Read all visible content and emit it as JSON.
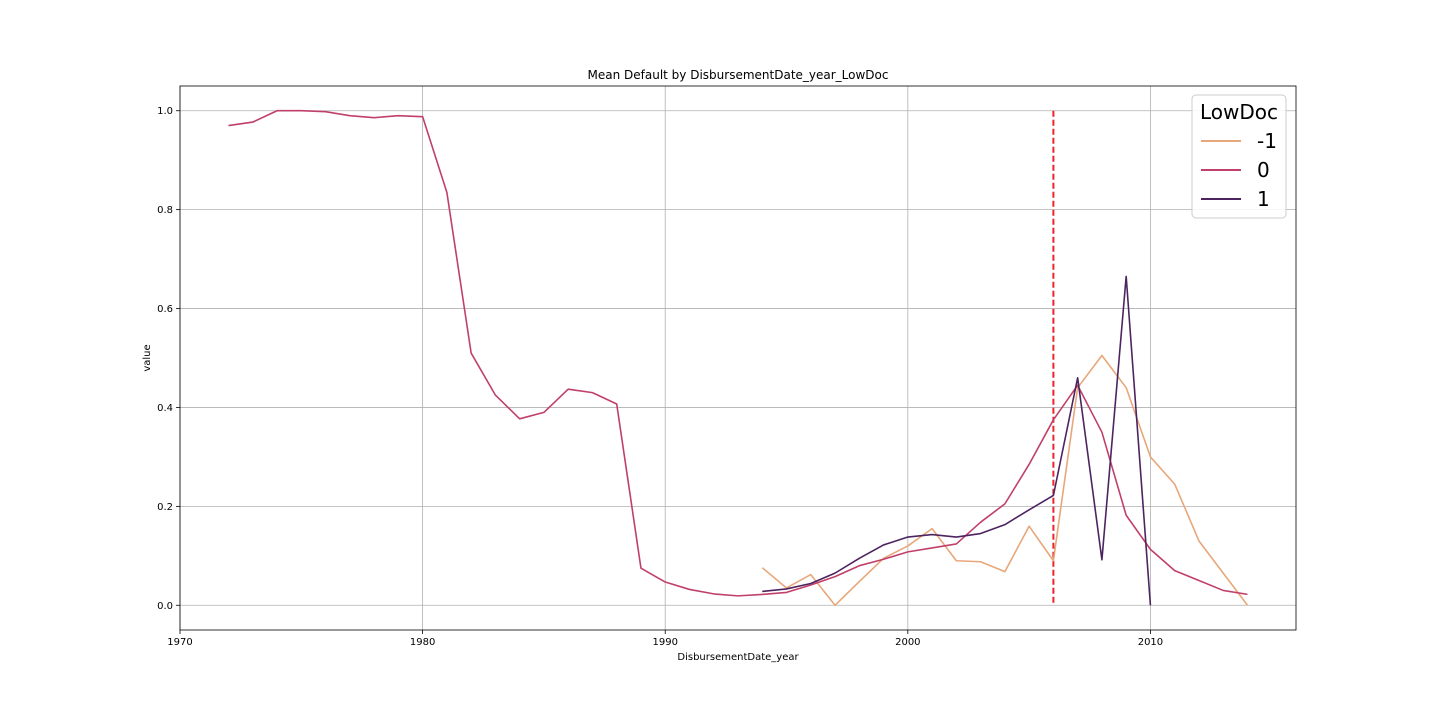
{
  "chart_data": {
    "type": "line",
    "title": "Mean Default by DisbursementDate_year_LowDoc",
    "xlabel": "DisbursementDate_year",
    "ylabel": "value",
    "xlim": [
      1970,
      2016
    ],
    "ylim": [
      -0.05,
      1.05
    ],
    "xticks": [
      1970,
      1980,
      1990,
      2000,
      2010
    ],
    "xtick_labels": [
      "1970",
      "1980",
      "1990",
      "2000",
      "2010"
    ],
    "yticks": [
      0.0,
      0.2,
      0.4,
      0.6,
      0.8,
      1.0
    ],
    "ytick_labels": [
      "0.0",
      "0.2",
      "0.4",
      "0.6",
      "0.8",
      "1.0"
    ],
    "grid": true,
    "legend": {
      "title": "LowDoc",
      "placement": "top-right"
    },
    "series": [
      {
        "name": "-1",
        "color": "#e8a77a",
        "x": [
          1994,
          1995,
          1996,
          1997,
          1998,
          1999,
          2000,
          2001,
          2002,
          2003,
          2004,
          2005,
          2006,
          2007,
          2008,
          2009,
          2010,
          2011,
          2012,
          2013,
          2014
        ],
        "y": [
          0.076,
          0.035,
          0.062,
          0.0,
          0.048,
          0.095,
          0.12,
          0.155,
          0.09,
          0.088,
          0.068,
          0.16,
          0.09,
          0.44,
          0.505,
          0.44,
          0.3,
          0.245,
          0.13,
          0.065,
          0.0
        ]
      },
      {
        "name": "0",
        "color": "#c0406a",
        "x": [
          1972,
          1973,
          1974,
          1975,
          1976,
          1977,
          1978,
          1979,
          1980,
          1981,
          1982,
          1983,
          1984,
          1985,
          1986,
          1987,
          1988,
          1989,
          1990,
          1991,
          1992,
          1993,
          1994,
          1995,
          1996,
          1997,
          1998,
          1999,
          2000,
          2001,
          2002,
          2003,
          2004,
          2005,
          2006,
          2007,
          2008,
          2009,
          2010,
          2011,
          2012,
          2013,
          2014
        ],
        "y": [
          0.97,
          0.977,
          1.0,
          1.0,
          0.998,
          0.99,
          0.986,
          0.99,
          0.988,
          0.835,
          0.51,
          0.425,
          0.377,
          0.39,
          0.437,
          0.43,
          0.407,
          0.075,
          0.047,
          0.032,
          0.023,
          0.019,
          0.022,
          0.026,
          0.041,
          0.058,
          0.08,
          0.093,
          0.108,
          0.116,
          0.124,
          0.168,
          0.205,
          0.285,
          0.375,
          0.445,
          0.35,
          0.182,
          0.113,
          0.07,
          0.05,
          0.03,
          0.022
        ]
      },
      {
        "name": "1",
        "color": "#4d2460",
        "x": [
          1994,
          1995,
          1996,
          1997,
          1998,
          1999,
          2000,
          2001,
          2002,
          2003,
          2004,
          2005,
          2006,
          2007,
          2008,
          2009,
          2010
        ],
        "y": [
          0.028,
          0.033,
          0.044,
          0.065,
          0.095,
          0.122,
          0.138,
          0.143,
          0.138,
          0.145,
          0.163,
          0.193,
          0.222,
          0.46,
          0.092,
          0.665,
          0.0
        ]
      }
    ],
    "annotations": [
      {
        "type": "vertical-dashed-line",
        "x": 2006,
        "y_range": [
          0.0,
          1.0
        ],
        "color": "#e8262b"
      }
    ]
  }
}
